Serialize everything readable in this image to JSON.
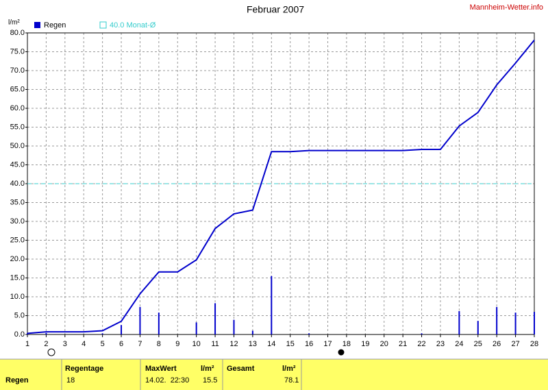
{
  "chart_data": {
    "type": "bar",
    "title": "Februar 2007",
    "source": "Mannheim-Wetter.info",
    "y_label": "l/m²",
    "x": [
      1,
      2,
      3,
      4,
      5,
      6,
      7,
      8,
      9,
      10,
      11,
      12,
      13,
      14,
      15,
      16,
      17,
      18,
      19,
      20,
      21,
      22,
      23,
      24,
      25,
      26,
      27,
      28
    ],
    "series": [
      {
        "name": "Regen",
        "color": "#0000cc",
        "values": [
          0.3,
          0.4,
          null,
          null,
          0.3,
          2.5,
          7.3,
          5.8,
          null,
          3.2,
          8.3,
          3.9,
          1.0,
          15.5,
          null,
          0.3,
          null,
          null,
          null,
          null,
          null,
          0.3,
          null,
          6.2,
          3.6,
          7.3,
          5.8,
          6.0
        ]
      }
    ],
    "cumulative": {
      "color": "#0000cc",
      "values": [
        0.3,
        0.7,
        0.7,
        0.7,
        1.0,
        3.5,
        10.8,
        16.6,
        16.6,
        19.8,
        28.1,
        32.0,
        33.0,
        48.5,
        48.5,
        48.8,
        48.8,
        48.8,
        48.8,
        48.8,
        48.8,
        49.1,
        49.1,
        55.3,
        58.9,
        66.2,
        72.0,
        78.1
      ]
    },
    "reference": {
      "value": 40,
      "label": "40.0 Monat-Ø",
      "color": "#33cccc"
    },
    "xlim": [
      1,
      28
    ],
    "xticks": [
      1,
      2,
      3,
      4,
      5,
      6,
      7,
      8,
      9,
      10,
      11,
      12,
      13,
      14,
      15,
      16,
      17,
      18,
      19,
      20,
      21,
      22,
      23,
      24,
      25,
      26,
      27,
      28
    ],
    "ylim": [
      0,
      80
    ],
    "yticks": [
      {
        "value": 0,
        "label": "0.0"
      },
      {
        "value": 5,
        "label": "5.0"
      },
      {
        "value": 10,
        "label": "10.0"
      },
      {
        "value": 15,
        "label": "15.0"
      },
      {
        "value": 20,
        "label": "20.0"
      },
      {
        "value": 25,
        "label": "25.0"
      },
      {
        "value": 30,
        "label": "30.0"
      },
      {
        "value": 35,
        "label": "35.0"
      },
      {
        "value": 40,
        "label": "40.0"
      },
      {
        "value": 45,
        "label": "45.0"
      },
      {
        "value": 50,
        "label": "50.0"
      },
      {
        "value": 55,
        "label": "55.0"
      },
      {
        "value": 60,
        "label": "60.0"
      },
      {
        "value": 65,
        "label": "65.0"
      },
      {
        "value": 70,
        "label": "70.0"
      },
      {
        "value": 75,
        "label": "75.0"
      },
      {
        "value": 80,
        "label": "80.0"
      }
    ],
    "grid": true
  },
  "table": {
    "header": [
      "Regentage",
      "MaxWert",
      "l/m²",
      "Gesamt",
      "l/m²"
    ],
    "rows": [
      [
        "Regen",
        "18",
        "14.02.  22:30",
        "15.5",
        "78.1"
      ]
    ]
  }
}
